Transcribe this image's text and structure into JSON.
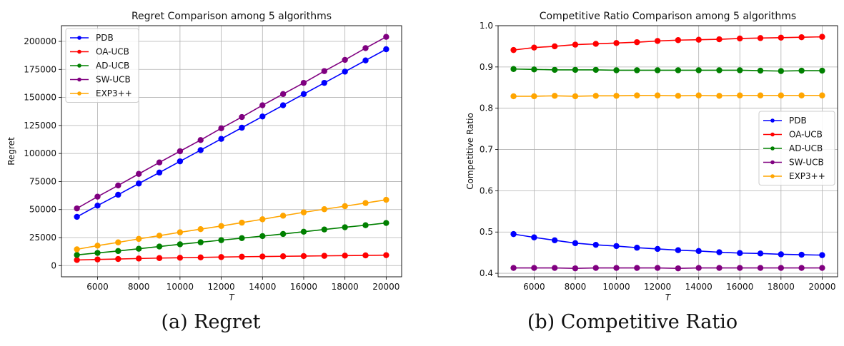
{
  "chart_data": [
    {
      "type": "line",
      "title": "Regret Comparison among 5 algorithms",
      "xlabel": "T",
      "ylabel": "Regret",
      "caption": "(a) Regret",
      "x": [
        5000,
        6000,
        7000,
        8000,
        9000,
        10000,
        11000,
        12000,
        13000,
        14000,
        15000,
        16000,
        17000,
        18000,
        19000,
        20000
      ],
      "xlim": [
        4250,
        20750
      ],
      "ylim": [
        -10000,
        214000
      ],
      "xticks": [
        "6000",
        "8000",
        "10000",
        "12000",
        "14000",
        "16000",
        "18000",
        "20000"
      ],
      "yticks": [
        "0",
        "25000",
        "50000",
        "75000",
        "100000",
        "125000",
        "150000",
        "175000",
        "200000"
      ],
      "grid": true,
      "legend_position": "upper-left",
      "series": [
        {
          "name": "PDB",
          "color": "#0000ff",
          "values": [
            43500,
            53500,
            63200,
            73200,
            83000,
            93000,
            103000,
            113000,
            123000,
            133000,
            143000,
            153000,
            163000,
            173000,
            183000,
            193000
          ]
        },
        {
          "name": "OA-UCB",
          "color": "#ff0000",
          "values": [
            5000,
            5500,
            5900,
            6300,
            6700,
            7000,
            7300,
            7600,
            7900,
            8100,
            8300,
            8500,
            8700,
            8900,
            9100,
            9300
          ]
        },
        {
          "name": "AD-UCB",
          "color": "#008000",
          "values": [
            9500,
            11300,
            13000,
            15000,
            17000,
            19000,
            20800,
            22700,
            24500,
            26300,
            28200,
            30200,
            32200,
            34200,
            36000,
            38000
          ]
        },
        {
          "name": "SW-UCB",
          "color": "#800080",
          "values": [
            51000,
            61500,
            71500,
            81800,
            92000,
            102000,
            112000,
            122500,
            132500,
            143000,
            153000,
            163000,
            173500,
            183500,
            194000,
            204000
          ]
        },
        {
          "name": "EXP3++",
          "color": "#ffa500",
          "values": [
            14500,
            17800,
            20700,
            23800,
            26700,
            29700,
            32500,
            35300,
            38300,
            41300,
            44500,
            47500,
            50300,
            53000,
            55800,
            58700
          ]
        }
      ]
    },
    {
      "type": "line",
      "title": "Competitive Ratio Comparison among 5 algorithms",
      "xlabel": "T",
      "ylabel": "Competitive Ratio",
      "caption": "(b) Competitive Ratio",
      "x": [
        5000,
        6000,
        7000,
        8000,
        9000,
        10000,
        11000,
        12000,
        13000,
        14000,
        15000,
        16000,
        17000,
        18000,
        19000,
        20000
      ],
      "xlim": [
        4250,
        20750
      ],
      "ylim": [
        0.3915,
        1.0
      ],
      "xticks": [
        "6000",
        "8000",
        "10000",
        "12000",
        "14000",
        "16000",
        "18000",
        "20000"
      ],
      "yticks": [
        "0.4",
        "0.5",
        "0.6",
        "0.7",
        "0.8",
        "0.9",
        "1.0"
      ],
      "grid": true,
      "legend_position": "center-right",
      "series": [
        {
          "name": "PDB",
          "color": "#0000ff",
          "values": [
            0.495,
            0.487,
            0.48,
            0.473,
            0.469,
            0.466,
            0.462,
            0.459,
            0.456,
            0.454,
            0.451,
            0.449,
            0.448,
            0.446,
            0.445,
            0.444
          ]
        },
        {
          "name": "OA-UCB",
          "color": "#ff0000",
          "values": [
            0.941,
            0.947,
            0.95,
            0.954,
            0.956,
            0.958,
            0.96,
            0.963,
            0.965,
            0.966,
            0.967,
            0.969,
            0.97,
            0.971,
            0.972,
            0.973
          ]
        },
        {
          "name": "AD-UCB",
          "color": "#008000",
          "values": [
            0.895,
            0.894,
            0.893,
            0.893,
            0.893,
            0.892,
            0.892,
            0.892,
            0.892,
            0.892,
            0.892,
            0.892,
            0.891,
            0.89,
            0.891,
            0.891
          ]
        },
        {
          "name": "SW-UCB",
          "color": "#800080",
          "values": [
            0.413,
            0.413,
            0.413,
            0.412,
            0.413,
            0.413,
            0.413,
            0.413,
            0.412,
            0.413,
            0.413,
            0.413,
            0.413,
            0.413,
            0.413,
            0.413
          ]
        },
        {
          "name": "EXP3++",
          "color": "#ffa500",
          "values": [
            0.829,
            0.829,
            0.83,
            0.829,
            0.83,
            0.83,
            0.831,
            0.831,
            0.83,
            0.831,
            0.83,
            0.831,
            0.831,
            0.831,
            0.831,
            0.831
          ]
        }
      ]
    }
  ]
}
